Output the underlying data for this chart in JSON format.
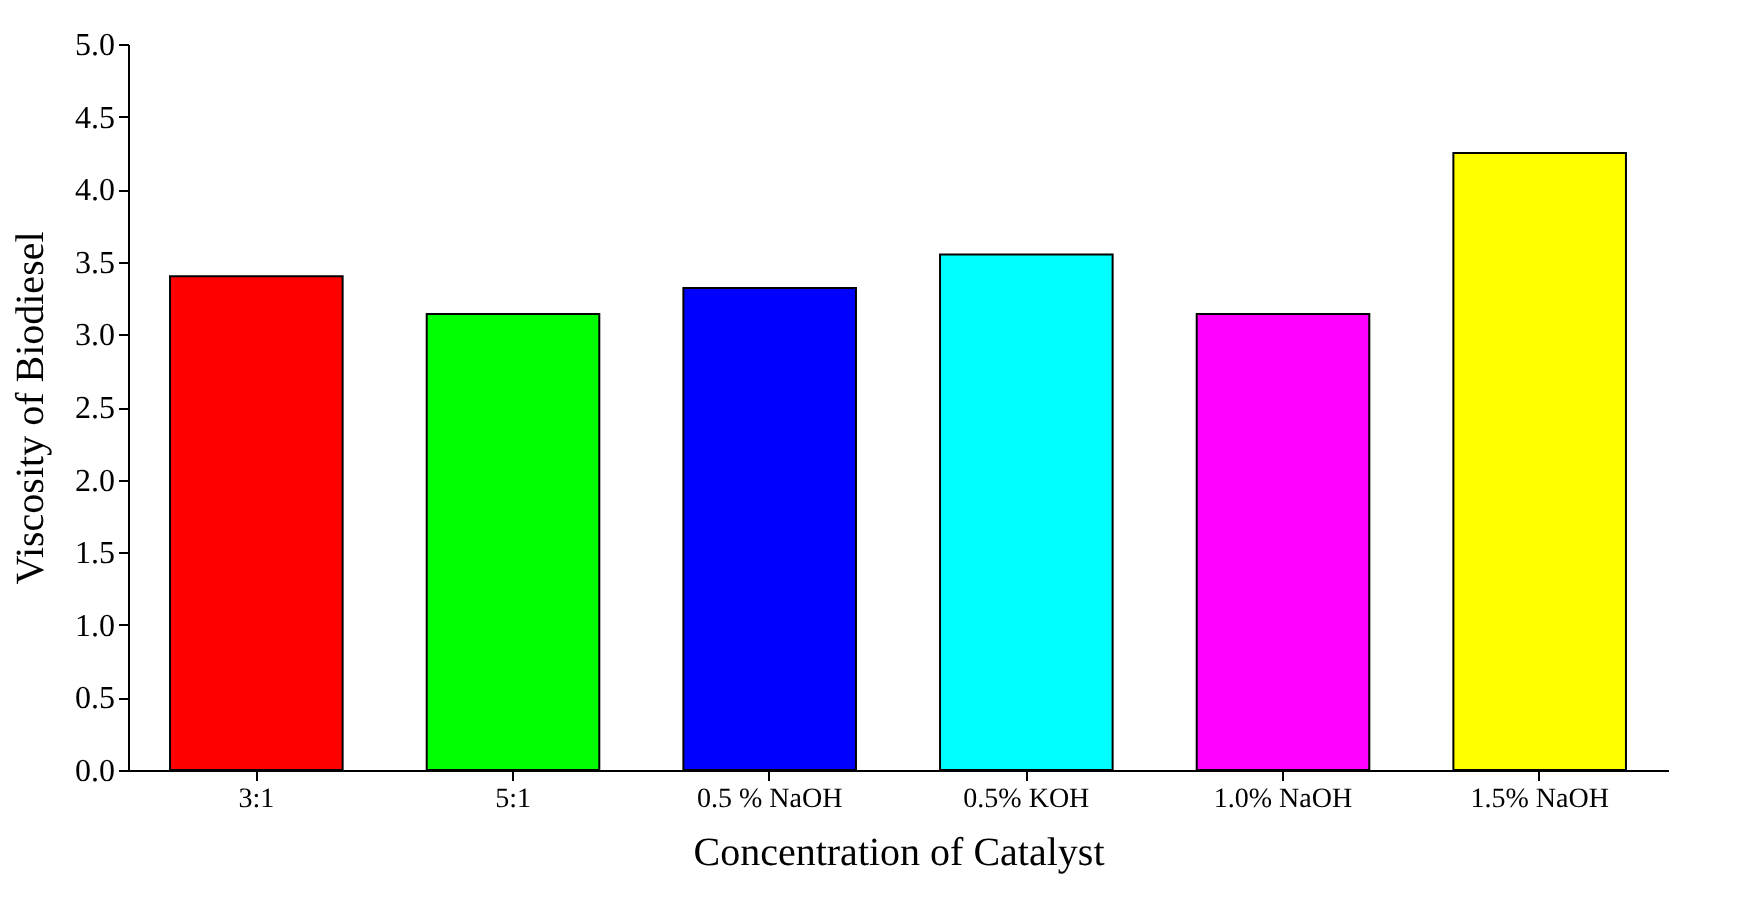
{
  "chart_data": {
    "type": "bar",
    "xlabel": "Concentration of Catalyst",
    "ylabel": "Viscosity of Biodiesel",
    "categories": [
      "3:1",
      "5:1",
      "0.5 % NaOH",
      "0.5% KOH",
      "1.0% NaOH",
      "1.5% NaOH"
    ],
    "values": [
      3.4,
      3.14,
      3.32,
      3.55,
      3.14,
      4.25
    ],
    "colors": [
      "#ff0000",
      "#00ff00",
      "#0000ff",
      "#00ffff",
      "#ff00ff",
      "#ffff00"
    ],
    "ylim": [
      0,
      5
    ],
    "yticks": [
      {
        "value": 0,
        "label": "0.0"
      },
      0.5,
      {
        "value": 1,
        "label": "1.0"
      },
      1.5,
      {
        "value": 2,
        "label": "2.0"
      },
      2.5,
      {
        "value": 3,
        "label": "3.0"
      },
      3.5,
      {
        "value": 4,
        "label": "4.0"
      },
      4.5,
      {
        "value": 5,
        "label": "5.0"
      }
    ],
    "grid": false,
    "legend": false
  }
}
